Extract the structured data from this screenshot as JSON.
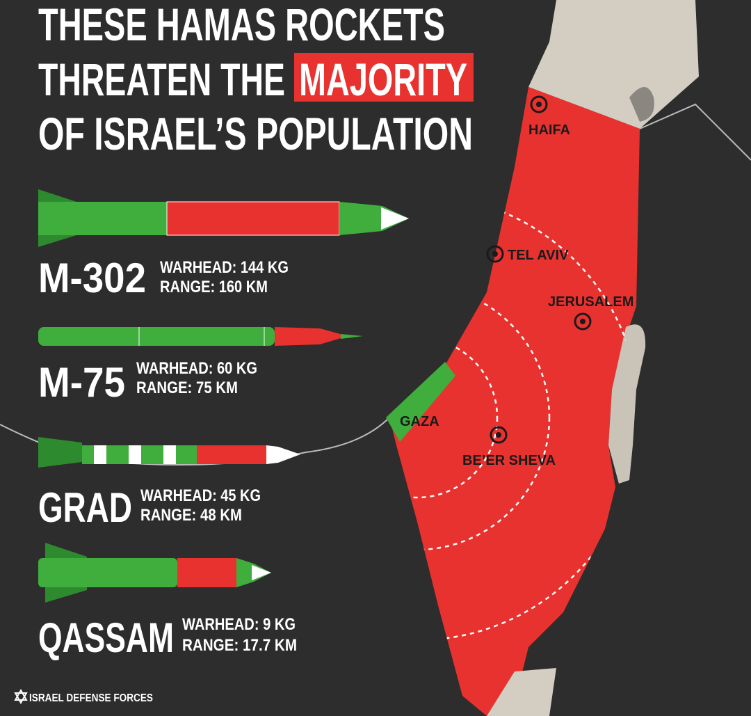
{
  "title": {
    "line1": "THESE HAMAS ROCKETS",
    "line2": "THREATEN THE",
    "highlight": "MAJORITY",
    "line3": "OF ISRAEL’S POPULATION"
  },
  "rockets": [
    {
      "name": "M-302",
      "warhead": "WARHEAD: 144 KG",
      "range": "RANGE: 160 KM"
    },
    {
      "name": "M-75",
      "warhead": "WARHEAD: 60 KG",
      "range": "RANGE: 75 KM"
    },
    {
      "name": "GRAD",
      "warhead": "WARHEAD: 45 KG",
      "range": "RANGE: 48 KM"
    },
    {
      "name": "QASSAM",
      "warhead": "WARHEAD: 9 KG",
      "range": "RANGE: 17.7 KM"
    }
  ],
  "map": {
    "cities": [
      "HAIFA",
      "TEL AVIV",
      "JERUSALEM",
      "BE’ER SHEVA"
    ],
    "gaza": "GAZA"
  },
  "footer": "ISRAEL DEFENSE FORCES"
}
